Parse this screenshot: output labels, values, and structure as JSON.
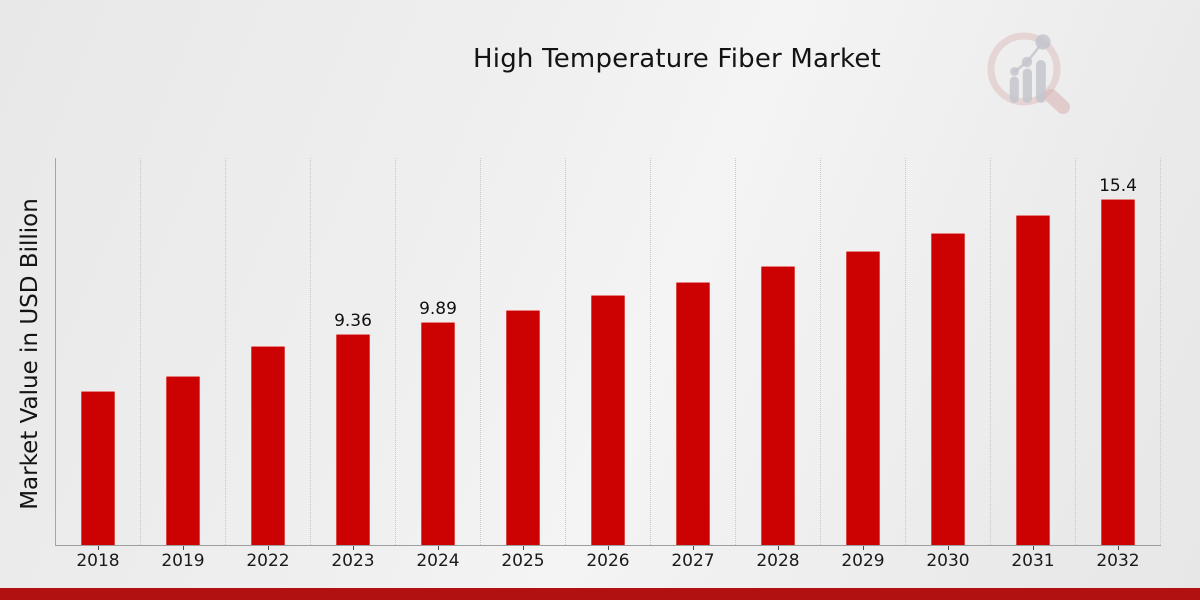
{
  "header": {
    "title": "High Temperature Fiber Market"
  },
  "branding": {
    "logo": "magnifier-bar-chart-logo"
  },
  "colors": {
    "bar": "#cc0202",
    "bottom_band": "#b11111",
    "background": "#ececec",
    "gridline": "#c8c8c8",
    "axis": "#9e9e9e",
    "logo_ring": "#dfc0c0",
    "logo_bars": "#c4c4cc"
  },
  "chart_data": {
    "type": "bar",
    "title": "High Temperature Fiber Market",
    "xlabel": "",
    "ylabel": "Market Value in USD Billion",
    "categories": [
      "2018",
      "2019",
      "2022",
      "2023",
      "2024",
      "2025",
      "2026",
      "2027",
      "2028",
      "2029",
      "2030",
      "2031",
      "2032"
    ],
    "values": [
      6.85,
      7.5,
      8.85,
      9.36,
      9.89,
      10.45,
      11.1,
      11.7,
      12.4,
      13.05,
      13.85,
      14.65,
      15.4
    ],
    "data_labels": {
      "2023": "9.36",
      "2024": "9.89",
      "2032": "15.4"
    },
    "ylim": [
      0,
      17.2
    ],
    "grid": "vertical-dotted",
    "legend": "none",
    "bar_color": "#cc0202"
  }
}
